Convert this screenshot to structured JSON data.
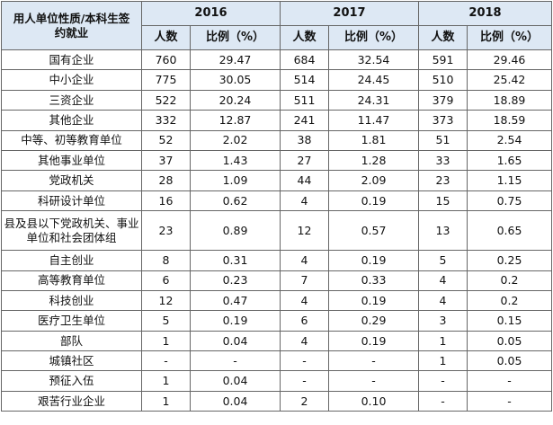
{
  "table": {
    "corner_header_line1": "用人单位性质/本科生签",
    "corner_header_line2": "约就业",
    "years": [
      "2016",
      "2017",
      "2018"
    ],
    "sub_headers": {
      "count": "人数",
      "ratio": "比例（%）"
    },
    "rows": [
      {
        "category": "国有企业",
        "cells": [
          "760",
          "29.47",
          "684",
          "32.54",
          "591",
          "29.46"
        ]
      },
      {
        "category": "中小企业",
        "cells": [
          "775",
          "30.05",
          "514",
          "24.45",
          "510",
          "25.42"
        ]
      },
      {
        "category": "三资企业",
        "cells": [
          "522",
          "20.24",
          "511",
          "24.31",
          "379",
          "18.89"
        ]
      },
      {
        "category": "其他企业",
        "cells": [
          "332",
          "12.87",
          "241",
          "11.47",
          "373",
          "18.59"
        ]
      },
      {
        "category": "中等、初等教育单位",
        "cells": [
          "52",
          "2.02",
          "38",
          "1.81",
          "51",
          "2.54"
        ]
      },
      {
        "category": "其他事业单位",
        "cells": [
          "37",
          "1.43",
          "27",
          "1.28",
          "33",
          "1.65"
        ]
      },
      {
        "category": "党政机关",
        "cells": [
          "28",
          "1.09",
          "44",
          "2.09",
          "23",
          "1.15"
        ]
      },
      {
        "category": "科研设计单位",
        "cells": [
          "16",
          "0.62",
          "4",
          "0.19",
          "15",
          "0.75"
        ]
      },
      {
        "category": "县及县以下党政机关、事业单位和社会团体组",
        "cells": [
          "23",
          "0.89",
          "12",
          "0.57",
          "13",
          "0.65"
        ]
      },
      {
        "category": "自主创业",
        "cells": [
          "8",
          "0.31",
          "4",
          "0.19",
          "5",
          "0.25"
        ]
      },
      {
        "category": "高等教育单位",
        "cells": [
          "6",
          "0.23",
          "7",
          "0.33",
          "4",
          "0.2"
        ]
      },
      {
        "category": "科技创业",
        "cells": [
          "12",
          "0.47",
          "4",
          "0.19",
          "4",
          "0.2"
        ]
      },
      {
        "category": "医疗卫生单位",
        "cells": [
          "5",
          "0.19",
          "6",
          "0.29",
          "3",
          "0.15"
        ]
      },
      {
        "category": "部队",
        "cells": [
          "1",
          "0.04",
          "4",
          "0.19",
          "1",
          "0.05"
        ]
      },
      {
        "category": "城镇社区",
        "cells": [
          "-",
          "-",
          "-",
          "-",
          "1",
          "0.05"
        ]
      },
      {
        "category": "预征入伍",
        "cells": [
          "1",
          "0.04",
          "-",
          "-",
          "-",
          "-"
        ]
      },
      {
        "category": "艰苦行业企业",
        "cells": [
          "1",
          "0.04",
          "2",
          "0.10",
          "-",
          "-"
        ]
      }
    ]
  }
}
